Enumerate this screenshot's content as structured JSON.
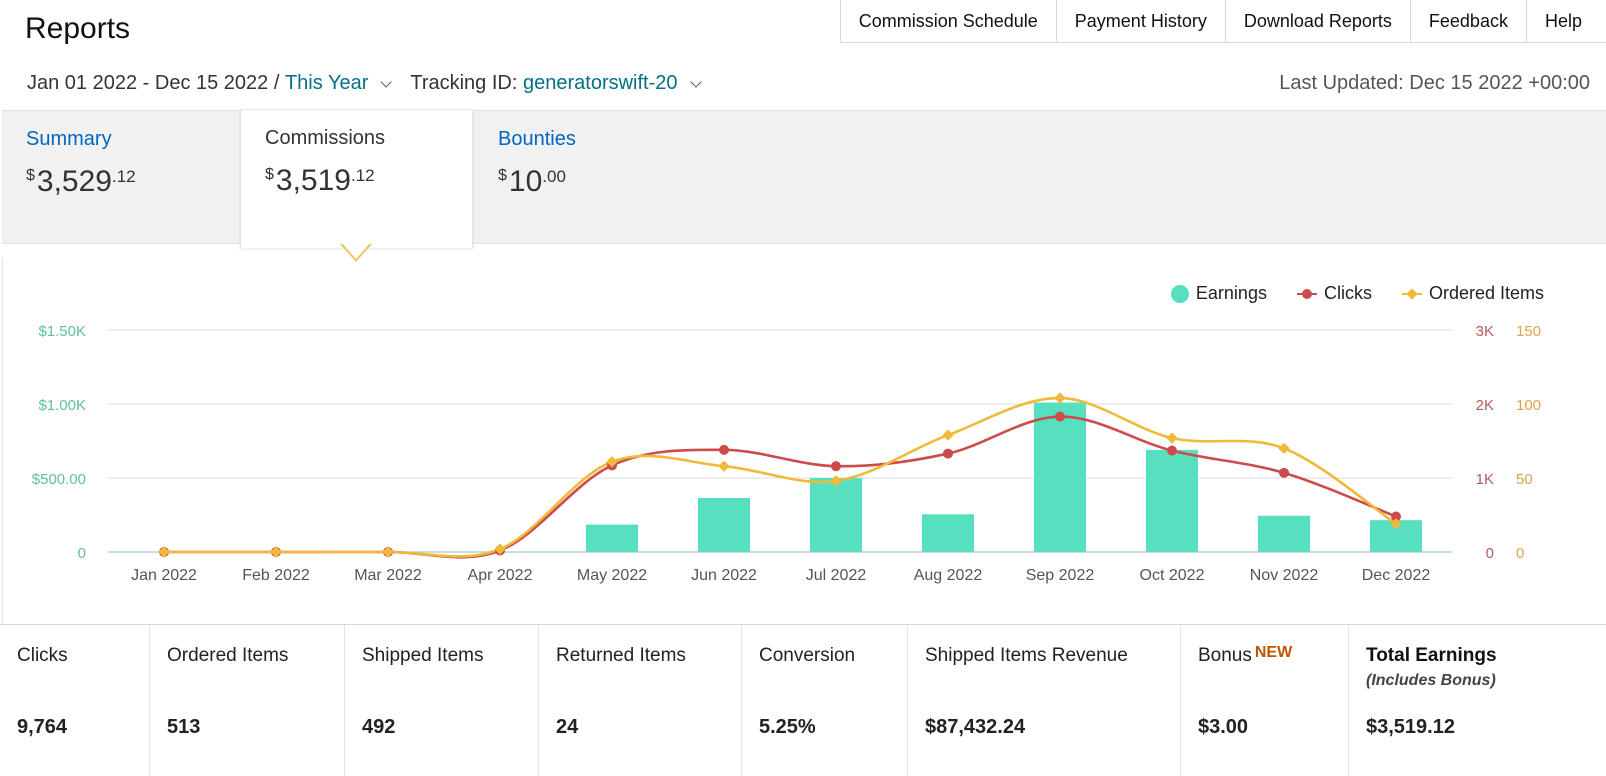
{
  "header": {
    "title": "Reports",
    "nav": [
      "Commission Schedule",
      "Payment History",
      "Download Reports",
      "Feedback",
      "Help"
    ]
  },
  "filters": {
    "date_range": "Jan 01 2022 - Dec 15 2022 /",
    "period": "This Year",
    "tracking_label": "Tracking ID:",
    "tracking_id": "generatorswift-20",
    "last_updated": "Last Updated: Dec 15 2022 +00:00"
  },
  "tabs": [
    {
      "label": "Summary",
      "currency": "$",
      "dollars": "3,529",
      "cents": ".12"
    },
    {
      "label": "Commissions",
      "currency": "$",
      "dollars": "3,519",
      "cents": ".12"
    },
    {
      "label": "Bounties",
      "currency": "$",
      "dollars": "10",
      "cents": ".00"
    }
  ],
  "legend": {
    "earnings": "Earnings",
    "clicks": "Clicks",
    "ordered": "Ordered Items"
  },
  "colors": {
    "earnings": "#56e0c0",
    "clicks": "#cc4b4b",
    "ordered": "#f0b93a",
    "link": "#007185",
    "tab_link": "#0066c0",
    "new_badge": "#c45500"
  },
  "chart_data": {
    "type": "bar+line",
    "categories": [
      "Jan 2022",
      "Feb 2022",
      "Mar 2022",
      "Apr 2022",
      "May 2022",
      "Jun 2022",
      "Jul 2022",
      "Aug 2022",
      "Sep 2022",
      "Oct 2022",
      "Nov 2022",
      "Dec 2022"
    ],
    "series": [
      {
        "name": "Earnings",
        "kind": "bar",
        "axis": "left",
        "values": [
          0,
          0,
          0,
          0,
          185,
          365,
          500,
          255,
          1010,
          690,
          245,
          215
        ]
      },
      {
        "name": "Clicks",
        "kind": "line",
        "axis": "right1",
        "values": [
          0,
          0,
          0,
          20,
          1170,
          1380,
          1160,
          1330,
          1830,
          1370,
          1070,
          480
        ]
      },
      {
        "name": "Ordered Items",
        "kind": "line",
        "axis": "right2",
        "values": [
          0,
          0,
          0,
          2,
          61,
          58,
          48,
          79,
          104,
          77,
          70,
          19
        ]
      }
    ],
    "y_left": {
      "ticks": [
        "0",
        "$500.00",
        "$1.00K",
        "$1.50K"
      ],
      "range": [
        0,
        1500
      ]
    },
    "y_right1": {
      "ticks": [
        "0",
        "1K",
        "2K",
        "3K"
      ],
      "range": [
        0,
        3000
      ]
    },
    "y_right2": {
      "ticks": [
        "0",
        "50",
        "100",
        "150"
      ],
      "range": [
        0,
        150
      ]
    },
    "grid": true,
    "legend_position": "top-right"
  },
  "stats": [
    {
      "label": "Clicks",
      "value": "9,764"
    },
    {
      "label": "Ordered Items",
      "value": "513"
    },
    {
      "label": "Shipped Items",
      "value": "492"
    },
    {
      "label": "Returned Items",
      "value": "24"
    },
    {
      "label": "Conversion",
      "value": "5.25%"
    },
    {
      "label": "Shipped Items Revenue",
      "value": "$87,432.24"
    },
    {
      "label": "Bonus",
      "badge": "NEW",
      "value": "$3.00"
    },
    {
      "label": "Total Earnings",
      "sub": "(Includes Bonus)",
      "value": "$3,519.12"
    }
  ]
}
